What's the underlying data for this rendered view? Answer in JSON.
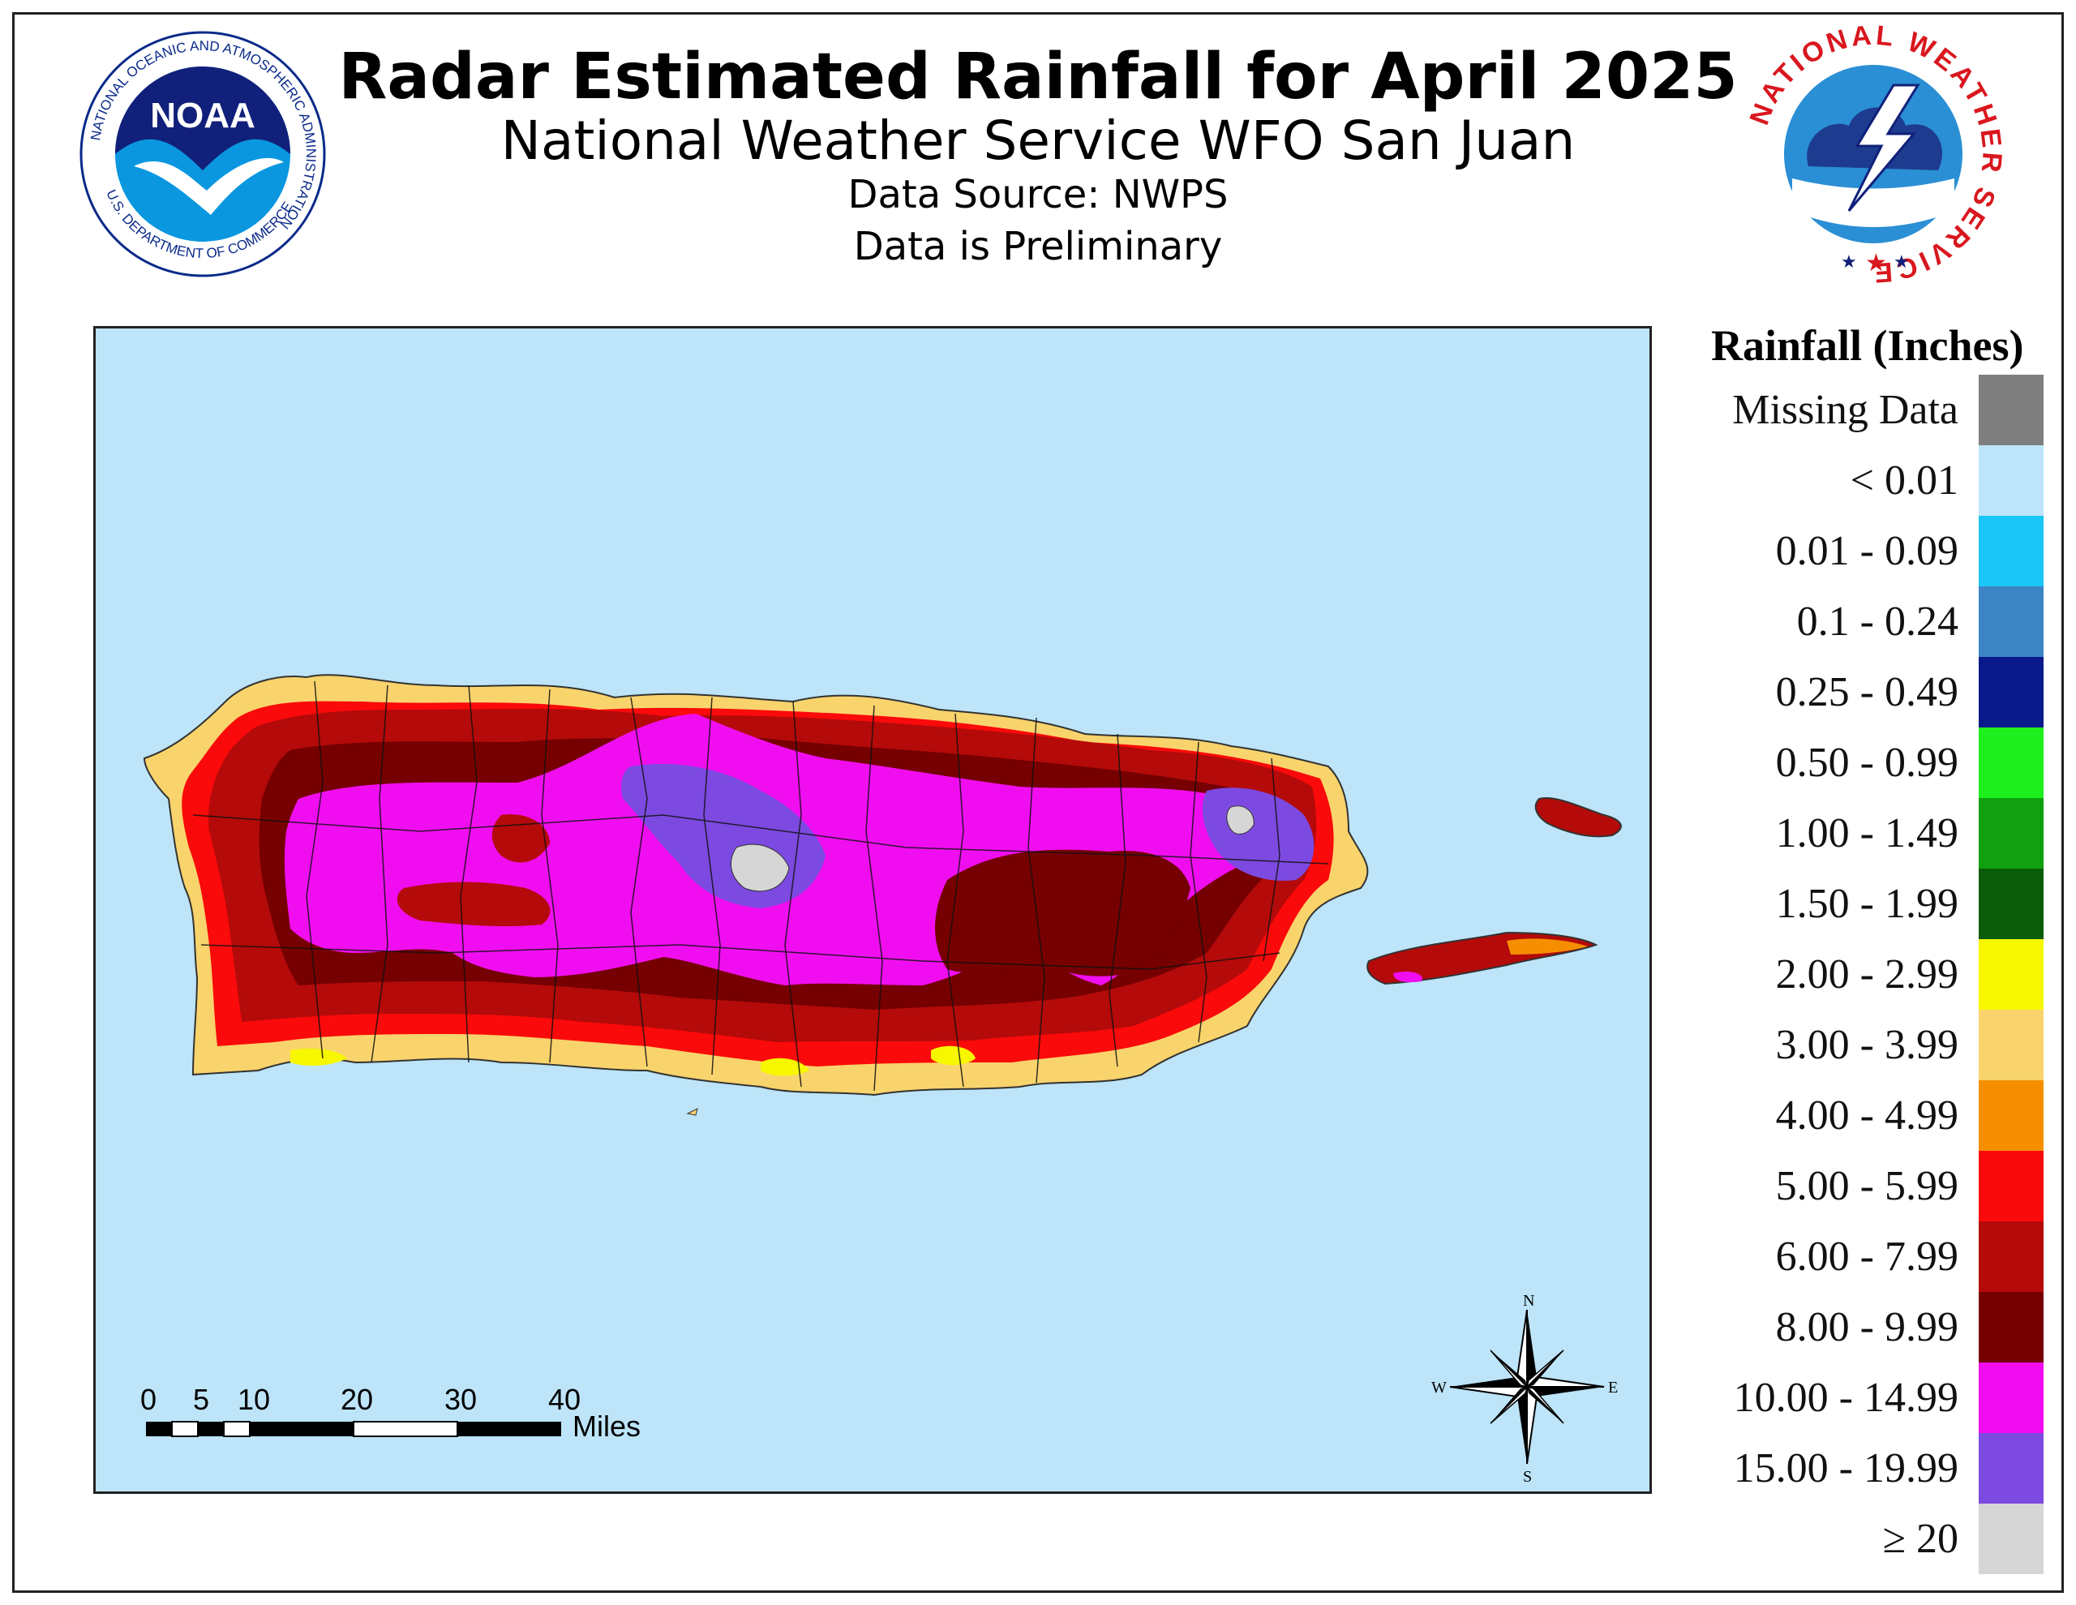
{
  "header": {
    "title": "Radar Estimated Rainfall for April 2025",
    "subtitle": "National Weather Service WFO San Juan",
    "source": "Data Source: NWPS",
    "note": "Data is Preliminary"
  },
  "logos": {
    "noaa": {
      "inner_text": "NOAA",
      "ring_text": "NATIONAL OCEANIC AND ATMOSPHERIC ADMINISTRATION",
      "bottom_text": "U.S. DEPARTMENT OF COMMERCE"
    },
    "nws": {
      "ring_text": "NATIONAL WEATHER SERVICE"
    }
  },
  "legend": {
    "title": "Rainfall (Inches)",
    "items": [
      {
        "label": "Missing Data",
        "color": "#7f7f7f"
      },
      {
        "label": "< 0.01",
        "color": "#bde4f8"
      },
      {
        "label": "0.01 - 0.09",
        "color": "#19c6f5"
      },
      {
        "label": "0.1 - 0.24",
        "color": "#3d84c4"
      },
      {
        "label": "0.25 - 0.49",
        "color": "#0a1a8c"
      },
      {
        "label": "0.50 - 0.99",
        "color": "#1ef01e"
      },
      {
        "label": "1.00 - 1.49",
        "color": "#10a010"
      },
      {
        "label": "1.50 - 1.99",
        "color": "#0a5c0a"
      },
      {
        "label": "2.00 - 2.99",
        "color": "#f7f700"
      },
      {
        "label": "3.00 - 3.99",
        "color": "#f9d46c"
      },
      {
        "label": "4.00 - 4.99",
        "color": "#f68f00"
      },
      {
        "label": "5.00 - 5.99",
        "color": "#fa0a0a"
      },
      {
        "label": "6.00 - 7.99",
        "color": "#b40a0a"
      },
      {
        "label": "8.00 - 9.99",
        "color": "#760000"
      },
      {
        "label": "10.00 - 14.99",
        "color": "#f00ef0"
      },
      {
        "label": "15.00 - 19.99",
        "color": "#7c4ae0"
      },
      {
        "label": "≥ 20",
        "color": "#d6d6d6"
      }
    ]
  },
  "scale_bar": {
    "ticks": [
      "0",
      "5",
      "10",
      "20",
      "30",
      "40"
    ],
    "unit": "Miles"
  },
  "compass": {
    "n": "N",
    "s": "S",
    "e": "E",
    "w": "W"
  }
}
